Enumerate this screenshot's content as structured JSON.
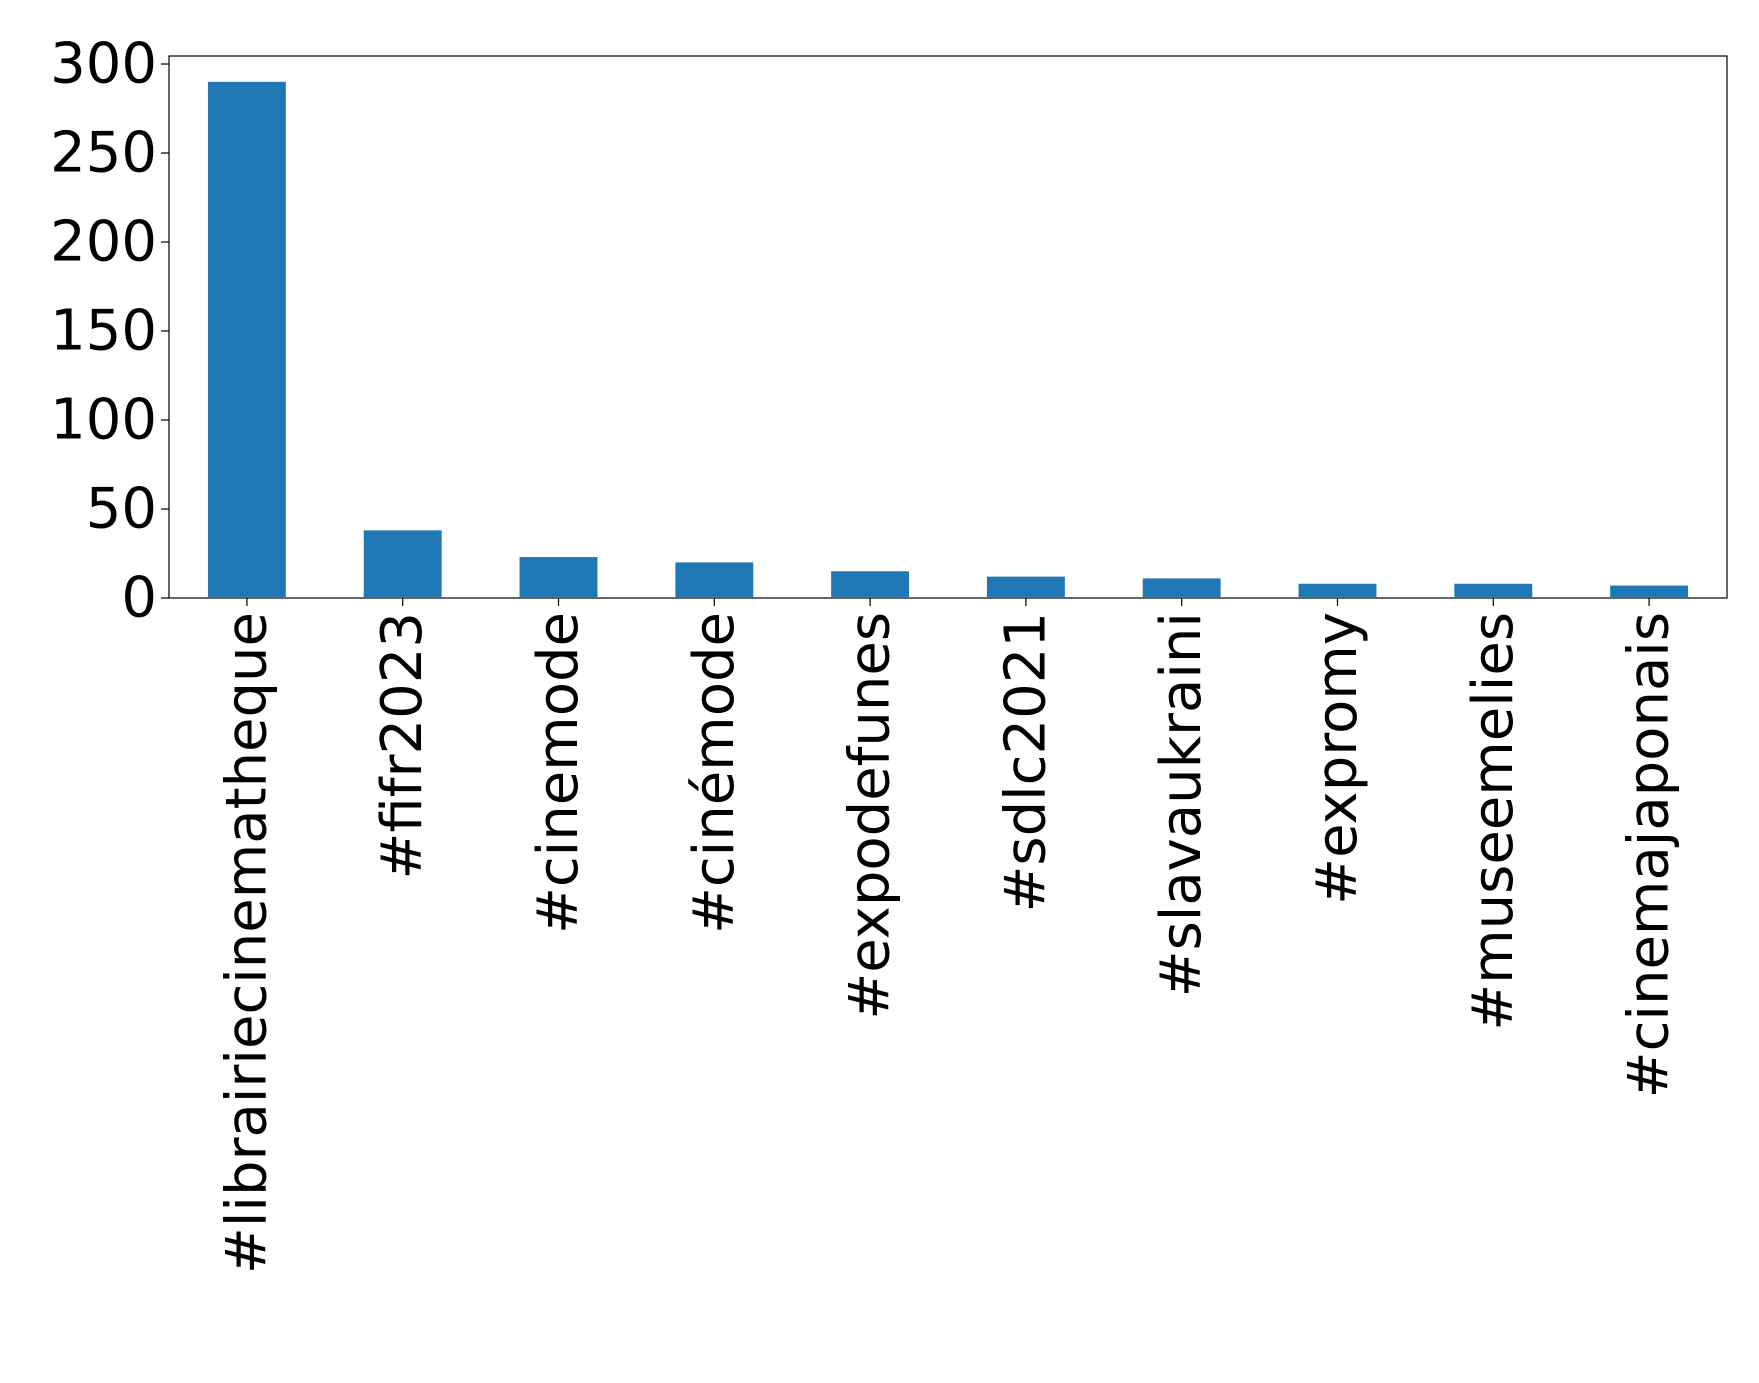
{
  "chart_data": {
    "type": "bar",
    "categories": [
      "#librairiecinematheque",
      "#fifr2023",
      "#cinemode",
      "#cinémode",
      "#expodefunes",
      "#sdlc2021",
      "#slavaukraini",
      "#expromy",
      "#museemelies",
      "#cinemajaponais"
    ],
    "values": [
      290,
      38,
      23,
      20,
      15,
      12,
      11,
      8,
      8,
      7
    ],
    "color": "#1f77b4",
    "ylim": [
      0,
      304.5
    ],
    "yticks": [
      0,
      50,
      100,
      150,
      200,
      250,
      300
    ],
    "grid": false
  }
}
